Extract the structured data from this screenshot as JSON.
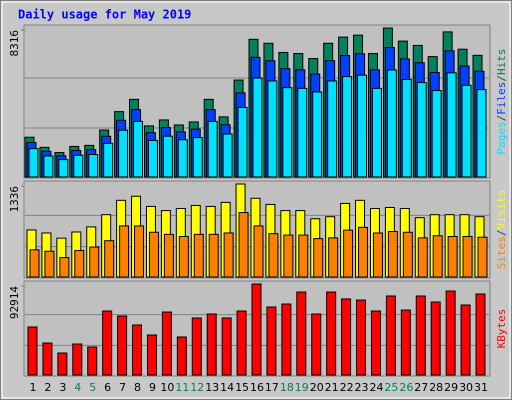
{
  "chart_data": [
    {
      "type": "bar",
      "title": "Daily usage for May 2019",
      "legend_separator": "/",
      "ylim": [
        0,
        8316
      ],
      "yticks": [
        8316
      ],
      "series": [
        {
          "name": "Pages",
          "color": "#00e0ff",
          "values": [
            1630,
            1220,
            1020,
            1260,
            1300,
            1920,
            2650,
            3140,
            2080,
            2320,
            2120,
            2240,
            3140,
            2440,
            3910,
            5540,
            5380,
            5010,
            4970,
            4770,
            5380,
            5620,
            5700,
            4970,
            5990,
            5460,
            5290,
            4850,
            5830,
            5140,
            4900
          ]
        },
        {
          "name": "Files",
          "color": "#0040ff",
          "values": [
            1970,
            1480,
            1230,
            1520,
            1570,
            2310,
            3200,
            3790,
            2510,
            2800,
            2560,
            2710,
            3790,
            2950,
            4720,
            6690,
            6500,
            6060,
            6000,
            5760,
            6500,
            6790,
            6890,
            6000,
            7230,
            6600,
            6390,
            5850,
            7050,
            6210,
            5920
          ]
        },
        {
          "name": "Hits",
          "color": "#00805c",
          "values": [
            2260,
            1700,
            1410,
            1750,
            1810,
            2660,
            3680,
            4360,
            2890,
            3220,
            2940,
            3110,
            4360,
            3390,
            5430,
            7690,
            7470,
            6960,
            6900,
            6620,
            7470,
            7810,
            7920,
            6900,
            8316,
            7590,
            7350,
            6730,
            8100,
            7140,
            6800
          ]
        }
      ]
    },
    {
      "type": "bar",
      "legend_separator": "/",
      "ylim": [
        0,
        1336
      ],
      "yticks": [
        1336
      ],
      "series": [
        {
          "name": "Sites",
          "color": "#ff8000",
          "values": [
            400,
            380,
            290,
            390,
            440,
            530,
            740,
            740,
            650,
            620,
            590,
            620,
            620,
            640,
            930,
            740,
            630,
            610,
            610,
            560,
            570,
            680,
            720,
            640,
            660,
            650,
            570,
            600,
            590,
            590,
            580
          ]
        },
        {
          "name": "Visits",
          "color": "#ffff00",
          "values": [
            683,
            640,
            566,
            654,
            726,
            900,
            1104,
            1162,
            1017,
            958,
            988,
            1031,
            1017,
            1075,
            1336,
            1133,
            1046,
            958,
            958,
            842,
            871,
            1060,
            1104,
            988,
            1002,
            988,
            857,
            900,
            900,
            900,
            871
          ]
        }
      ]
    },
    {
      "type": "bar",
      "ylim": [
        0,
        92914
      ],
      "yticks": [
        92914
      ],
      "categories": [
        "1",
        "2",
        "3",
        "4",
        "5",
        "6",
        "7",
        "8",
        "9",
        "10",
        "11",
        "12",
        "13",
        "14",
        "15",
        "16",
        "17",
        "18",
        "19",
        "20",
        "21",
        "22",
        "23",
        "24",
        "25",
        "26",
        "27",
        "28",
        "29",
        "30",
        "31"
      ],
      "category_colors": [
        "#000000",
        "#000000",
        "#000000",
        "#00805c",
        "#00805c",
        "#000000",
        "#000000",
        "#000000",
        "#000000",
        "#000000",
        "#00805c",
        "#00805c",
        "#000000",
        "#000000",
        "#000000",
        "#000000",
        "#000000",
        "#00805c",
        "#00805c",
        "#000000",
        "#000000",
        "#000000",
        "#000000",
        "#000000",
        "#00805c",
        "#00805c",
        "#000000",
        "#000000",
        "#000000",
        "#000000",
        "#000000"
      ],
      "series": [
        {
          "name": "KBytes",
          "color": "#ff0000",
          "values": [
            49500,
            33300,
            23200,
            32300,
            29300,
            65600,
            60600,
            51500,
            41400,
            64600,
            39400,
            58600,
            62600,
            58600,
            65600,
            92914,
            69700,
            72700,
            84800,
            62600,
            84800,
            77800,
            76700,
            65600,
            80800,
            66600,
            80800,
            74700,
            85800,
            71700,
            82800
          ]
        }
      ]
    }
  ]
}
